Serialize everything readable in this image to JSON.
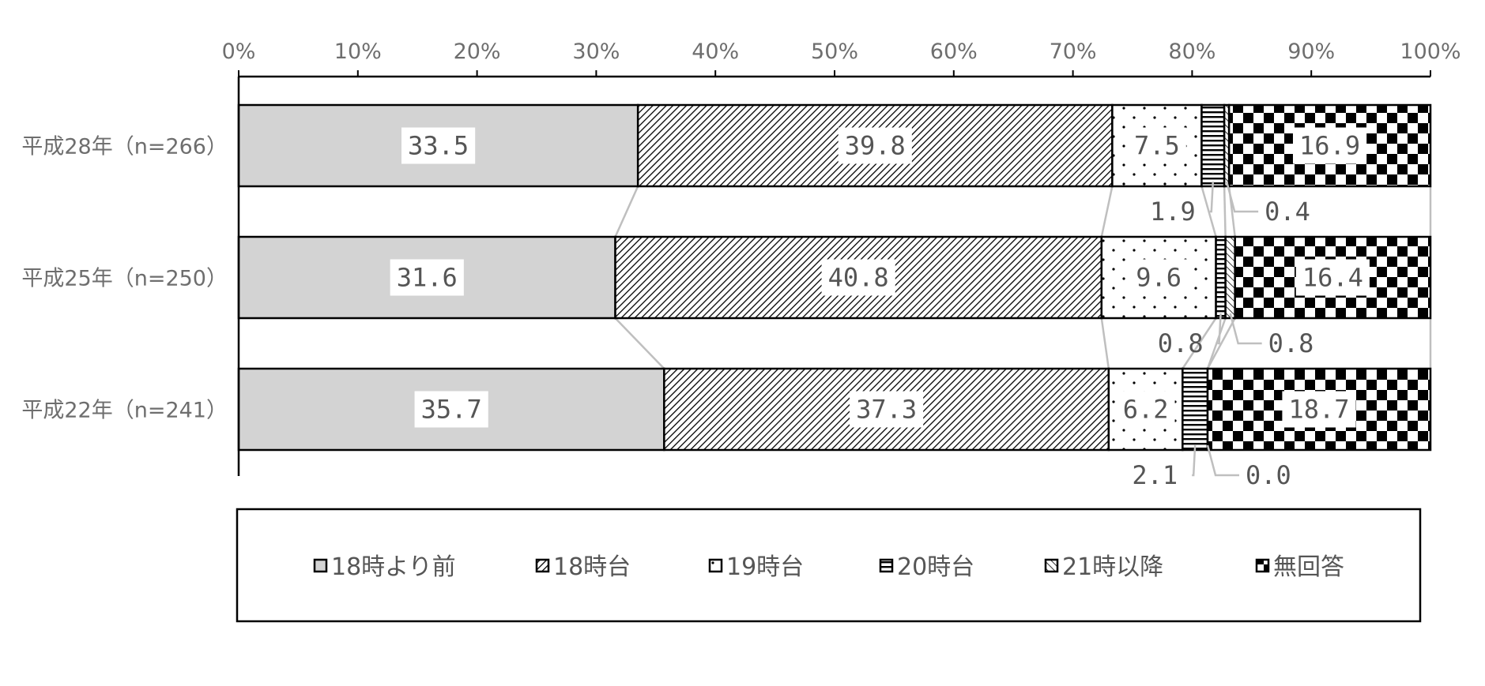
{
  "chart_data": {
    "type": "bar",
    "orientation": "horizontal",
    "stacked": "percent",
    "x_ticks": [
      "0%",
      "10%",
      "20%",
      "30%",
      "40%",
      "50%",
      "60%",
      "70%",
      "80%",
      "90%",
      "100%"
    ],
    "xlim": [
      0,
      100
    ],
    "categories": [
      "平成28年（n=266）",
      "平成25年（n=250）",
      "平成22年（n=241）"
    ],
    "series": [
      {
        "name": "18時より前",
        "values": [
          33.5,
          31.6,
          35.7
        ],
        "labels": [
          "33.5",
          "31.6",
          "35.7"
        ],
        "fill": "#d3d3d3"
      },
      {
        "name": "18時台",
        "values": [
          39.8,
          40.8,
          37.3
        ],
        "labels": [
          "39.8",
          "40.8",
          "37.3"
        ],
        "fill": "diagonal-hatch"
      },
      {
        "name": "19時台",
        "values": [
          7.5,
          9.6,
          6.2
        ],
        "labels": [
          "7.5",
          "9.6",
          "6.2"
        ],
        "fill": "sparse-dots"
      },
      {
        "name": "20時台",
        "values": [
          1.9,
          0.8,
          2.1
        ],
        "labels": [
          "1.9",
          "0.8",
          "2.1"
        ],
        "fill": "horizontal-lines"
      },
      {
        "name": "21時以降",
        "values": [
          0.4,
          0.8,
          0.0
        ],
        "labels": [
          "0.4",
          "0.8",
          "0.0"
        ],
        "fill": "light-diagonal"
      },
      {
        "name": "無回答",
        "values": [
          16.9,
          16.4,
          18.7
        ],
        "labels": [
          "16.9",
          "16.4",
          "18.7"
        ],
        "fill": "checkerboard"
      }
    ],
    "series_lines": true,
    "legend_position": "bottom",
    "grid": false
  }
}
